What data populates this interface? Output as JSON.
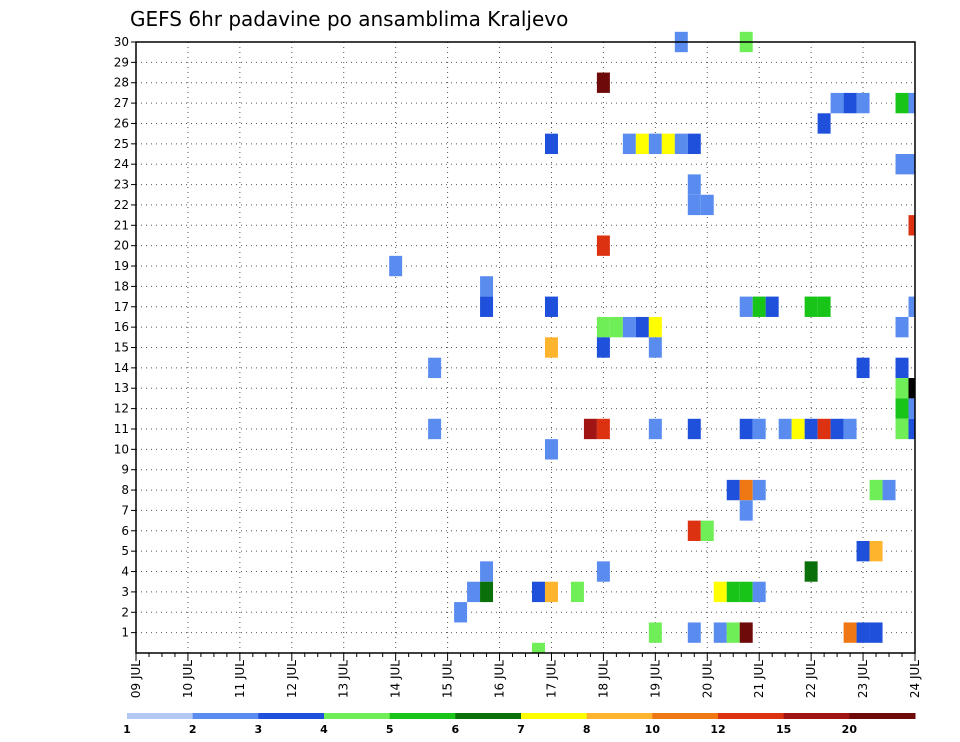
{
  "chart_data": {
    "type": "heatmap",
    "title": "GEFS 6hr padavine po ansamblima Kraljevo",
    "x_tick_labels": [
      "09 JUL",
      "10 JUL",
      "11 JUL",
      "12 JUL",
      "13 JUL",
      "14 JUL",
      "15 JUL",
      "16 JUL",
      "17 JUL",
      "18 JUL",
      "19 JUL",
      "20 JUL",
      "21 JUL",
      "22 JUL",
      "23 JUL",
      "24 JUL"
    ],
    "y_tick_labels": [
      "1",
      "2",
      "3",
      "4",
      "5",
      "6",
      "7",
      "8",
      "9",
      "10",
      "11",
      "12",
      "13",
      "14",
      "15",
      "16",
      "17",
      "18",
      "19",
      "20",
      "21",
      "22",
      "23",
      "24",
      "25",
      "26",
      "27",
      "28",
      "29",
      "30"
    ],
    "xlim": [
      0,
      60
    ],
    "ylim": [
      0,
      30
    ],
    "grid": true,
    "legend": {
      "position": "bottom",
      "levels": [
        "1",
        "2",
        "3",
        "4",
        "5",
        "6",
        "7",
        "8",
        "10",
        "12",
        "15",
        "20"
      ],
      "colors": [
        "#b4c8f4",
        "#5a8cf0",
        "#1e50dc",
        "#70ee58",
        "#18c418",
        "#0a700a",
        "#ffff00",
        "#ffb42e",
        "#f07814",
        "#dc3212",
        "#a01414",
        "#6e0a0a"
      ]
    },
    "cells": [
      [
        42,
        30,
        1
      ],
      [
        47,
        30,
        3
      ],
      [
        36,
        28,
        11
      ],
      [
        54,
        27,
        1
      ],
      [
        55,
        27,
        2
      ],
      [
        56,
        27,
        1
      ],
      [
        59,
        27,
        4
      ],
      [
        60,
        27,
        1
      ],
      [
        53,
        26,
        2
      ],
      [
        32,
        25,
        2
      ],
      [
        38,
        25,
        1
      ],
      [
        39,
        25,
        6
      ],
      [
        40,
        25,
        1
      ],
      [
        41,
        25,
        6
      ],
      [
        42,
        25,
        1
      ],
      [
        43,
        25,
        2
      ],
      [
        59,
        24,
        1
      ],
      [
        60,
        24,
        1
      ],
      [
        43,
        23,
        1
      ],
      [
        43,
        22,
        1
      ],
      [
        44,
        22,
        1
      ],
      [
        60,
        21,
        9
      ],
      [
        36,
        20,
        9
      ],
      [
        20,
        19,
        1
      ],
      [
        27,
        18,
        1
      ],
      [
        27,
        17,
        2
      ],
      [
        32,
        17,
        2
      ],
      [
        47,
        17,
        1
      ],
      [
        48,
        17,
        4
      ],
      [
        49,
        17,
        2
      ],
      [
        52,
        17,
        4
      ],
      [
        53,
        17,
        4
      ],
      [
        60,
        17,
        1
      ],
      [
        36,
        16,
        3
      ],
      [
        37,
        16,
        3
      ],
      [
        38,
        16,
        1
      ],
      [
        39,
        16,
        2
      ],
      [
        40,
        16,
        6
      ],
      [
        59,
        16,
        1
      ],
      [
        32,
        15,
        7
      ],
      [
        36,
        15,
        2
      ],
      [
        40,
        15,
        1
      ],
      [
        23,
        14,
        1
      ],
      [
        56,
        14,
        2
      ],
      [
        59,
        14,
        2
      ],
      [
        59,
        13,
        3
      ],
      [
        60,
        13,
        12
      ],
      [
        59,
        12,
        4
      ],
      [
        60,
        12,
        1
      ],
      [
        23,
        11,
        1
      ],
      [
        35,
        11,
        10
      ],
      [
        36,
        11,
        9
      ],
      [
        40,
        11,
        1
      ],
      [
        43,
        11,
        2
      ],
      [
        47,
        11,
        2
      ],
      [
        48,
        11,
        1
      ],
      [
        50,
        11,
        1
      ],
      [
        51,
        11,
        6
      ],
      [
        52,
        11,
        2
      ],
      [
        53,
        11,
        9
      ],
      [
        54,
        11,
        2
      ],
      [
        55,
        11,
        1
      ],
      [
        59,
        11,
        3
      ],
      [
        60,
        11,
        2
      ],
      [
        32,
        10,
        1
      ],
      [
        46,
        8,
        2
      ],
      [
        47,
        8,
        8
      ],
      [
        48,
        8,
        1
      ],
      [
        57,
        8,
        3
      ],
      [
        58,
        8,
        1
      ],
      [
        47,
        7,
        1
      ],
      [
        43,
        6,
        9
      ],
      [
        44,
        6,
        3
      ],
      [
        56,
        5,
        2
      ],
      [
        57,
        5,
        7
      ],
      [
        27,
        4,
        1
      ],
      [
        36,
        4,
        1
      ],
      [
        52,
        4,
        5
      ],
      [
        26,
        3,
        1
      ],
      [
        27,
        3,
        5
      ],
      [
        31,
        3,
        2
      ],
      [
        32,
        3,
        7
      ],
      [
        34,
        3,
        3
      ],
      [
        45,
        3,
        6
      ],
      [
        46,
        3,
        4
      ],
      [
        47,
        3,
        4
      ],
      [
        48,
        3,
        1
      ],
      [
        25,
        2,
        1
      ],
      [
        40,
        1,
        3
      ],
      [
        43,
        1,
        1
      ],
      [
        45,
        1,
        1
      ],
      [
        46,
        1,
        3
      ],
      [
        47,
        1,
        11
      ],
      [
        55,
        1,
        8
      ],
      [
        56,
        1,
        2
      ],
      [
        57,
        1,
        2
      ],
      [
        31,
        0,
        3
      ]
    ]
  }
}
